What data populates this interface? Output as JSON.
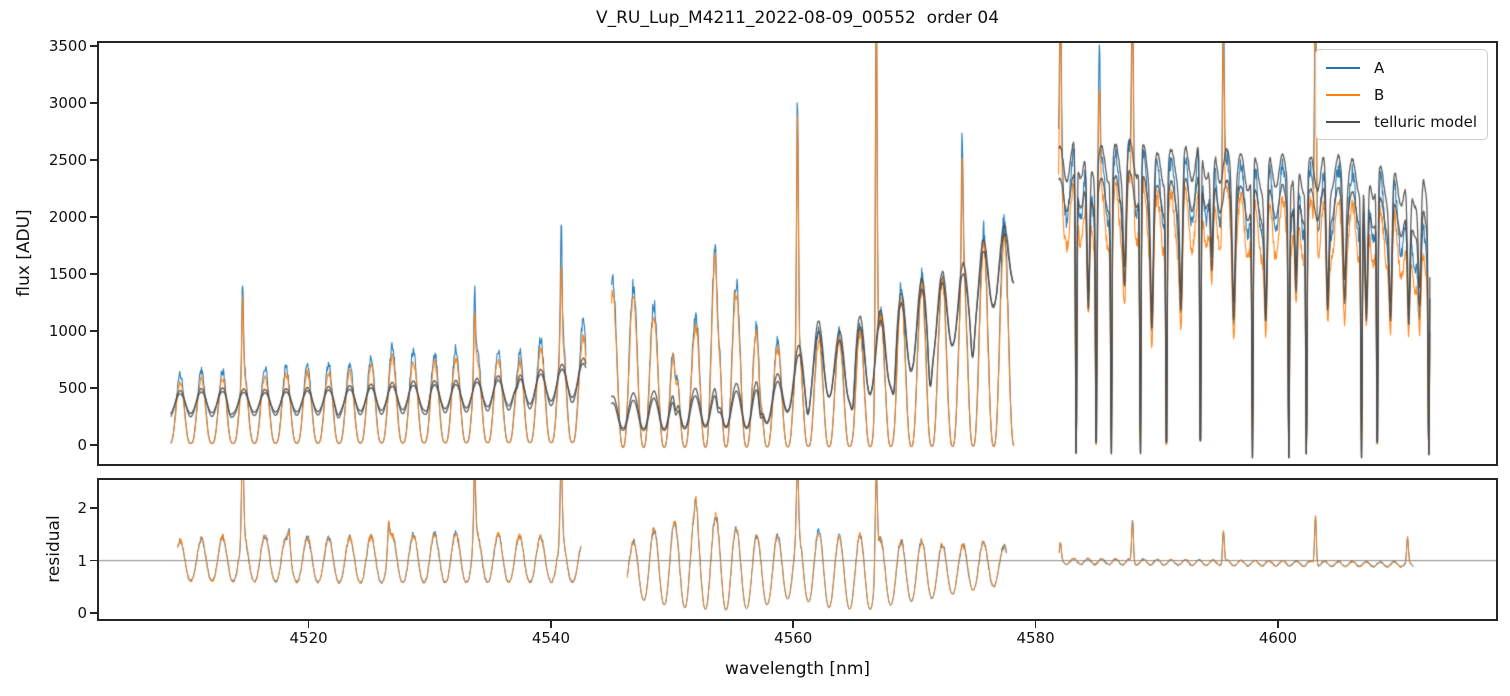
{
  "chart_data": {
    "type": "line",
    "title": "V_RU_Lup_M4211_2022-08-09_00552  order 04",
    "xlabel": "wavelength [nm]",
    "xlim": [
      4502.7,
      4618.0
    ],
    "xticks": [
      4520,
      4540,
      4560,
      4580,
      4600
    ],
    "grid": false,
    "legend": {
      "location": "upper right",
      "entries": [
        {
          "label": "A",
          "color": "#1f77b4"
        },
        {
          "label": "B",
          "color": "#ff7f0e"
        },
        {
          "label": "telluric model",
          "color": "#4d4d4d"
        }
      ]
    },
    "panels": [
      {
        "id": "flux",
        "ylabel": "flux [ADU]",
        "ylim": [
          -166,
          3526
        ],
        "yticks": [
          0,
          500,
          1000,
          1500,
          2000,
          2500,
          3000,
          3500
        ]
      },
      {
        "id": "residual",
        "ylabel": "residual",
        "ylim": [
          -0.115,
          2.54
        ],
        "yticks": [
          0,
          1,
          2
        ],
        "reference_line": 1.0
      }
    ],
    "series_style": {
      "A": "#1f77b4",
      "B": "#ff7f0e",
      "telluric": "#4d4d4d",
      "telluric_lines": 2,
      "line_width": 1.1,
      "telluric_width": 1.3
    },
    "data_gaps": [
      [
        4542.9,
        4545.0
      ],
      [
        4578.2,
        4581.9
      ]
    ],
    "noise_seed": 20220809,
    "sample_step": 0.04,
    "segments": [
      {
        "x0": 4508.6,
        "x1": 4542.9,
        "res_x0": 4509.2,
        "res_x1": 4542.5,
        "period": 1.75,
        "phase": 4508.96,
        "comb_power": 1.5,
        "noise": 0.055,
        "b_scale": 0.9,
        "a_peaks": [
          [
            4508.6,
            600
          ],
          [
            4511,
            660
          ],
          [
            4513,
            650
          ],
          [
            4515,
            690
          ],
          [
            4517,
            680
          ],
          [
            4519,
            700
          ],
          [
            4521,
            715
          ],
          [
            4523,
            705
          ],
          [
            4525,
            760
          ],
          [
            4527,
            860
          ],
          [
            4529,
            815
          ],
          [
            4531,
            810
          ],
          [
            4533,
            870
          ],
          [
            4535,
            850
          ],
          [
            4537,
            830
          ],
          [
            4539,
            920
          ],
          [
            4541,
            1030
          ],
          [
            4542.9,
            1070
          ]
        ],
        "a_valleys": [
          [
            4508.6,
            15
          ],
          [
            4542.9,
            25
          ]
        ],
        "g_peaks": [
          [
            4508.6,
            470
          ],
          [
            4512,
            505
          ],
          [
            4516,
            485
          ],
          [
            4520,
            505
          ],
          [
            4524,
            525
          ],
          [
            4528,
            560
          ],
          [
            4532,
            565
          ],
          [
            4536,
            610
          ],
          [
            4540,
            680
          ],
          [
            4542.9,
            770
          ]
        ],
        "g_valleys": [
          [
            4508.6,
            245
          ],
          [
            4516,
            260
          ],
          [
            4524,
            265
          ],
          [
            4532,
            285
          ],
          [
            4538,
            315
          ],
          [
            4542.9,
            390
          ]
        ],
        "g_power": 1.0,
        "g_noise": 0.007,
        "gray2": {
          "amp": 0.75,
          "off": 0
        },
        "spikes": [
          [
            4514.55,
            800,
            740
          ],
          [
            4533.7,
            700,
            580
          ],
          [
            4540.85,
            900,
            680
          ]
        ],
        "spike_sigma": 0.09,
        "medium_dips": [
          [
            4513.5,
            0.15
          ],
          [
            4522.4,
            0.12
          ],
          [
            4529.8,
            0.15
          ],
          [
            4537.2,
            0.12
          ]
        ],
        "medium_sigma": 0.2,
        "deep_dips": [],
        "deep_floor": -110,
        "deep_sigma": 0.08,
        "r_peaks": [
          [
            4509.2,
            1.38
          ],
          [
            4515,
            1.48
          ],
          [
            4521,
            1.42
          ],
          [
            4527,
            1.48
          ],
          [
            4533,
            1.52
          ],
          [
            4539,
            1.45
          ],
          [
            4542.5,
            1.38
          ]
        ],
        "r_valleys": [
          [
            4509.2,
            0.62
          ],
          [
            4525,
            0.58
          ],
          [
            4542.5,
            0.6
          ]
        ],
        "r_power": 1.2,
        "r_noise": 0.045,
        "r_spikes": [
          [
            4514.55,
            1.7
          ],
          [
            4518.4,
            0.3
          ],
          [
            4526.6,
            0.5
          ],
          [
            4533.7,
            1.35
          ],
          [
            4540.85,
            1.5
          ]
        ],
        "r_spike_sigma": 0.12
      },
      {
        "x0": 4545.0,
        "x1": 4578.2,
        "res_x0": 4546.3,
        "res_x1": 4577.6,
        "period": 1.7,
        "phase": 4546.375,
        "comb_power": 1.35,
        "noise": 0.055,
        "b_scale": 0.93,
        "a_peaks": [
          [
            4545.0,
            1450
          ],
          [
            4546.9,
            1400
          ],
          [
            4548.4,
            1250
          ],
          [
            4550.2,
            950
          ],
          [
            4551.8,
            1050
          ],
          [
            4553.3,
            1900
          ],
          [
            4555.0,
            1500
          ],
          [
            4556.7,
            1100
          ],
          [
            4558.4,
            900
          ],
          [
            4560.4,
            950
          ],
          [
            4562.4,
            1000
          ],
          [
            4564.4,
            980
          ],
          [
            4566.4,
            1080
          ],
          [
            4568.4,
            1350
          ],
          [
            4570.4,
            1470
          ],
          [
            4572.4,
            1520
          ],
          [
            4574.4,
            1700
          ],
          [
            4576.4,
            1960
          ],
          [
            4578.2,
            1940
          ]
        ],
        "a_valleys": [
          [
            4545.0,
            -20
          ],
          [
            4578.2,
            -10
          ]
        ],
        "g_peaks": [
          [
            4545.0,
            430
          ],
          [
            4548,
            475
          ],
          [
            4551,
            485
          ],
          [
            4554,
            525
          ],
          [
            4557,
            565
          ],
          [
            4559.5,
            650
          ],
          [
            4561.5,
            1130
          ],
          [
            4563.5,
            980
          ],
          [
            4565.5,
            1130
          ],
          [
            4567.5,
            1190
          ],
          [
            4569.5,
            1400
          ],
          [
            4571.5,
            1510
          ],
          [
            4573.5,
            1530
          ],
          [
            4575.5,
            1780
          ],
          [
            4578.2,
            1990
          ]
        ],
        "g_valleys": [
          [
            4545.0,
            150
          ],
          [
            4549,
            140
          ],
          [
            4553,
            175
          ],
          [
            4557,
            150
          ],
          [
            4560,
            330
          ],
          [
            4562.5,
            430
          ],
          [
            4565,
            380
          ],
          [
            4568,
            520
          ],
          [
            4570.5,
            700
          ],
          [
            4573,
            860
          ],
          [
            4575.5,
            1080
          ],
          [
            4578.2,
            1420
          ]
        ],
        "g_power": 1.1,
        "g_noise": 0.008,
        "gray2": {
          "amp": 0.85,
          "off": -40
        },
        "spikes": [
          [
            4560.35,
            2150,
            2000
          ],
          [
            4566.85,
            3400,
            3300
          ],
          [
            4573.95,
            1100,
            980
          ]
        ],
        "spike_sigma": 0.1,
        "medium_dips": [
          [
            4550.3,
            0.35
          ],
          [
            4553.8,
            0.3
          ],
          [
            4557.3,
            0.4
          ],
          [
            4561.2,
            0.3
          ],
          [
            4564.9,
            0.35
          ],
          [
            4568.3,
            0.3
          ],
          [
            4571.3,
            0.35
          ],
          [
            4574.8,
            0.25
          ]
        ],
        "medium_sigma": 0.18,
        "deep_dips": [],
        "deep_floor": -110,
        "deep_sigma": 0.08,
        "r_peaks": [
          [
            4546.3,
            1.3
          ],
          [
            4548,
            1.55
          ],
          [
            4550,
            1.7
          ],
          [
            4552,
            1.95
          ],
          [
            4554,
            1.85
          ],
          [
            4556,
            1.5
          ],
          [
            4558,
            1.45
          ],
          [
            4560,
            1.5
          ],
          [
            4562,
            1.55
          ],
          [
            4564,
            1.45
          ],
          [
            4566,
            1.5
          ],
          [
            4568,
            1.35
          ],
          [
            4570,
            1.4
          ],
          [
            4572,
            1.3
          ],
          [
            4574,
            1.3
          ],
          [
            4576,
            1.35
          ],
          [
            4577.6,
            1.25
          ]
        ],
        "r_valleys": [
          [
            4546.3,
            0.4
          ],
          [
            4548,
            0.2
          ],
          [
            4551,
            0.1
          ],
          [
            4554,
            0.05
          ],
          [
            4557,
            0.1
          ],
          [
            4560,
            0.3
          ],
          [
            4563,
            0.1
          ],
          [
            4566,
            0.05
          ],
          [
            4569,
            0.2
          ],
          [
            4572,
            0.3
          ],
          [
            4575,
            0.45
          ],
          [
            4577.6,
            0.55
          ]
        ],
        "r_power": 1.1,
        "r_noise": 0.05,
        "r_spikes": [
          [
            4552.0,
            0.3
          ],
          [
            4560.35,
            1.3
          ],
          [
            4566.85,
            1.75
          ]
        ],
        "r_spike_sigma": 0.12
      },
      {
        "x0": 4581.9,
        "x1": 4612.55,
        "res_x0": 4581.95,
        "res_x1": 4611.2,
        "period": 1.15,
        "phase": 4581.71,
        "comb_power": 1.0,
        "noise": 0.032,
        "b_scale": 0.88,
        "a_peaks": [
          [
            4581.9,
            2560
          ],
          [
            4584,
            2620
          ],
          [
            4586,
            2520
          ],
          [
            4588,
            2680
          ],
          [
            4590,
            2470
          ],
          [
            4592,
            2510
          ],
          [
            4594,
            2600
          ],
          [
            4596,
            2510
          ],
          [
            4598,
            2420
          ],
          [
            4600,
            2460
          ],
          [
            4602,
            2400
          ],
          [
            4604,
            2450
          ],
          [
            4606,
            2400
          ],
          [
            4608,
            2360
          ],
          [
            4609.5,
            2310
          ],
          [
            4611,
            2080
          ],
          [
            4612.55,
            1900
          ]
        ],
        "a_valleys": [
          [
            4581.9,
            1950
          ],
          [
            4584,
            2000
          ],
          [
            4586,
            1920
          ],
          [
            4588,
            2040
          ],
          [
            4590,
            1880
          ],
          [
            4592,
            1910
          ],
          [
            4594,
            1980
          ],
          [
            4596,
            1910
          ],
          [
            4598,
            1840
          ],
          [
            4600,
            1870
          ],
          [
            4602,
            1830
          ],
          [
            4604,
            1860
          ],
          [
            4606,
            1830
          ],
          [
            4608,
            1800
          ],
          [
            4609.5,
            1760
          ],
          [
            4611,
            1580
          ],
          [
            4612.55,
            1450
          ]
        ],
        "g_peaks": [
          [
            4581.9,
            2620
          ],
          [
            4584,
            2660
          ],
          [
            4586,
            2610
          ],
          [
            4588,
            2690
          ],
          [
            4590,
            2560
          ],
          [
            4592,
            2610
          ],
          [
            4594,
            2660
          ],
          [
            4596,
            2590
          ],
          [
            4598,
            2510
          ],
          [
            4600,
            2570
          ],
          [
            4602,
            2510
          ],
          [
            4604,
            2560
          ],
          [
            4606,
            2510
          ],
          [
            4608,
            2460
          ],
          [
            4610,
            2390
          ],
          [
            4612.55,
            2360
          ]
        ],
        "g_valleys": [
          [
            4581.9,
            2310
          ],
          [
            4584,
            2340
          ],
          [
            4586,
            2300
          ],
          [
            4588,
            2370
          ],
          [
            4590,
            2250
          ],
          [
            4592,
            2300
          ],
          [
            4594,
            2340
          ],
          [
            4596,
            2280
          ],
          [
            4598,
            2210
          ],
          [
            4600,
            2260
          ],
          [
            4602,
            2210
          ],
          [
            4604,
            2250
          ],
          [
            4606,
            2210
          ],
          [
            4608,
            2160
          ],
          [
            4610,
            2100
          ],
          [
            4612.55,
            2080
          ]
        ],
        "g_power": 1.0,
        "g_noise": 0.006,
        "gray2": {
          "amp": 0.95,
          "off": -270
        },
        "spikes": [
          [
            4582.05,
            1700,
            1650
          ],
          [
            4585.25,
            1150,
            1050
          ],
          [
            4588.0,
            1850,
            1750
          ],
          [
            4595.5,
            1750,
            1650
          ],
          [
            4603.1,
            2150,
            2050
          ],
          [
            4610.9,
            420,
            320
          ]
        ],
        "spike_sigma": 0.1,
        "medium_dips": [
          [
            4584.35,
            0.5
          ],
          [
            4587.35,
            0.35
          ],
          [
            4589.6,
            0.5
          ],
          [
            4592.0,
            0.45
          ],
          [
            4594.55,
            0.35
          ],
          [
            4596.35,
            0.45
          ],
          [
            4599.0,
            0.5
          ],
          [
            4601.5,
            0.4
          ],
          [
            4604.1,
            0.45
          ],
          [
            4605.5,
            0.35
          ],
          [
            4607.3,
            0.5
          ],
          [
            4609.3,
            0.45
          ],
          [
            4610.8,
            0.5
          ],
          [
            4611.7,
            0.4
          ]
        ],
        "medium_sigma": 0.16,
        "deep_dips": [
          4583.35,
          4585.0,
          4586.25,
          4588.65,
          4590.8,
          4593.6,
          4597.9,
          4600.9,
          4602.35,
          4606.9,
          4608.2,
          4612.45
        ],
        "deep_floor": -110,
        "deep_sigma": 0.08,
        "r_peaks": [
          [
            4581.95,
            1.04
          ],
          [
            4611.2,
            0.97
          ]
        ],
        "r_valleys": [
          [
            4581.95,
            0.93
          ],
          [
            4611.2,
            0.88
          ]
        ],
        "r_power": 1.0,
        "r_noise": 0.02,
        "r_spikes": [
          [
            4582.05,
            0.32
          ],
          [
            4588.0,
            0.8
          ],
          [
            4595.5,
            0.63
          ],
          [
            4603.1,
            0.95
          ],
          [
            4610.7,
            0.48
          ]
        ],
        "r_spike_sigma": 0.1
      }
    ]
  }
}
